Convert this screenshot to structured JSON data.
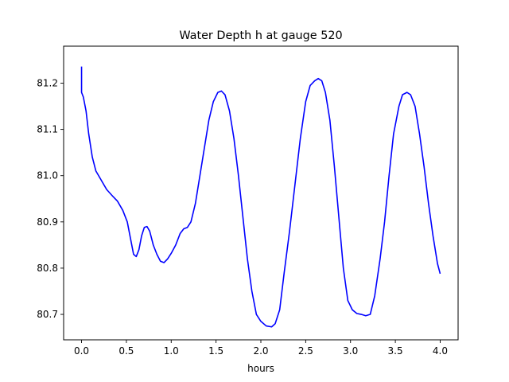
{
  "chart_data": {
    "type": "line",
    "title": "Water Depth h at gauge 520",
    "xlabel": "hours",
    "ylabel": "",
    "xlim": [
      -0.2,
      4.2
    ],
    "ylim": [
      80.645,
      81.28
    ],
    "xticks": [
      0.0,
      0.5,
      1.0,
      1.5,
      2.0,
      2.5,
      3.0,
      3.5,
      4.0
    ],
    "xtick_labels": [
      "0.0",
      "0.5",
      "1.0",
      "1.5",
      "2.0",
      "2.5",
      "3.0",
      "3.5",
      "4.0"
    ],
    "yticks": [
      80.7,
      80.8,
      80.9,
      81.0,
      81.1,
      81.2
    ],
    "ytick_labels": [
      "80.7",
      "80.8",
      "80.9",
      "81.0",
      "81.1",
      "81.2"
    ],
    "grid": false,
    "series": [
      {
        "color": "#0000ff",
        "points": [
          [
            0.0,
            81.236
          ],
          [
            0.0,
            81.18
          ],
          [
            0.02,
            81.17
          ],
          [
            0.05,
            81.14
          ],
          [
            0.08,
            81.09
          ],
          [
            0.12,
            81.04
          ],
          [
            0.16,
            81.01
          ],
          [
            0.22,
            80.99
          ],
          [
            0.28,
            80.97
          ],
          [
            0.35,
            80.955
          ],
          [
            0.4,
            80.945
          ],
          [
            0.46,
            80.925
          ],
          [
            0.51,
            80.9
          ],
          [
            0.55,
            80.86
          ],
          [
            0.58,
            80.83
          ],
          [
            0.61,
            80.825
          ],
          [
            0.64,
            80.84
          ],
          [
            0.67,
            80.87
          ],
          [
            0.7,
            80.888
          ],
          [
            0.73,
            80.89
          ],
          [
            0.76,
            80.88
          ],
          [
            0.8,
            80.85
          ],
          [
            0.84,
            80.83
          ],
          [
            0.88,
            80.815
          ],
          [
            0.92,
            80.812
          ],
          [
            0.96,
            80.82
          ],
          [
            1.0,
            80.832
          ],
          [
            1.05,
            80.85
          ],
          [
            1.1,
            80.875
          ],
          [
            1.14,
            80.885
          ],
          [
            1.18,
            80.888
          ],
          [
            1.22,
            80.9
          ],
          [
            1.27,
            80.94
          ],
          [
            1.32,
            81.0
          ],
          [
            1.37,
            81.06
          ],
          [
            1.42,
            81.12
          ],
          [
            1.47,
            81.16
          ],
          [
            1.52,
            81.18
          ],
          [
            1.56,
            81.183
          ],
          [
            1.6,
            81.175
          ],
          [
            1.65,
            81.14
          ],
          [
            1.7,
            81.08
          ],
          [
            1.75,
            81.0
          ],
          [
            1.8,
            80.91
          ],
          [
            1.85,
            80.82
          ],
          [
            1.9,
            80.75
          ],
          [
            1.95,
            80.7
          ],
          [
            2.0,
            80.685
          ],
          [
            2.06,
            80.675
          ],
          [
            2.12,
            80.673
          ],
          [
            2.16,
            80.68
          ],
          [
            2.21,
            80.71
          ],
          [
            2.26,
            80.79
          ],
          [
            2.32,
            80.88
          ],
          [
            2.38,
            80.98
          ],
          [
            2.44,
            81.08
          ],
          [
            2.5,
            81.16
          ],
          [
            2.55,
            81.195
          ],
          [
            2.6,
            81.205
          ],
          [
            2.64,
            81.21
          ],
          [
            2.68,
            81.205
          ],
          [
            2.72,
            81.18
          ],
          [
            2.77,
            81.12
          ],
          [
            2.82,
            81.02
          ],
          [
            2.87,
            80.91
          ],
          [
            2.92,
            80.8
          ],
          [
            2.97,
            80.73
          ],
          [
            3.02,
            80.71
          ],
          [
            3.07,
            80.702
          ],
          [
            3.12,
            80.7
          ],
          [
            3.17,
            80.697
          ],
          [
            3.22,
            80.7
          ],
          [
            3.27,
            80.74
          ],
          [
            3.33,
            80.82
          ],
          [
            3.38,
            80.9
          ],
          [
            3.43,
            81.0
          ],
          [
            3.48,
            81.09
          ],
          [
            3.54,
            81.15
          ],
          [
            3.58,
            81.175
          ],
          [
            3.63,
            81.18
          ],
          [
            3.67,
            81.175
          ],
          [
            3.72,
            81.15
          ],
          [
            3.77,
            81.09
          ],
          [
            3.82,
            81.02
          ],
          [
            3.87,
            80.94
          ],
          [
            3.92,
            80.87
          ],
          [
            3.97,
            80.81
          ],
          [
            4.0,
            80.788
          ]
        ]
      }
    ]
  }
}
